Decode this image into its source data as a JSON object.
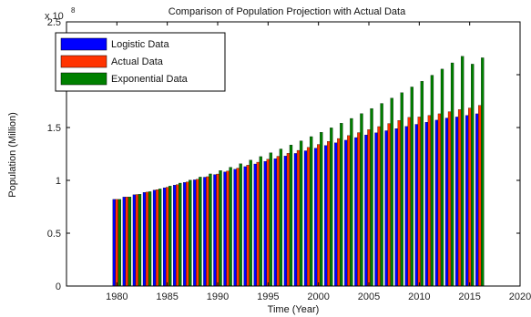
{
  "chart_data": {
    "type": "bar",
    "title": "Comparison of Population Projection with Actual Data",
    "xlabel": "Time (Year)",
    "ylabel": "Population (Million)",
    "y_exponent_label": "x 10",
    "y_exponent_power": "8",
    "xlim": [
      1975,
      2020
    ],
    "ylim": [
      0,
      250000000
    ],
    "x_ticks": [
      1980,
      1985,
      1990,
      1995,
      2000,
      2005,
      2010,
      2015,
      2020
    ],
    "x_tick_labels": [
      "1980",
      "1985",
      "1990",
      "1995",
      "2000",
      "2005",
      "2010",
      "2015",
      "2020"
    ],
    "y_ticks": [
      0,
      50000000,
      100000000,
      150000000,
      200000000,
      250000000
    ],
    "y_tick_labels": [
      "0",
      "0.5",
      "1",
      "1.5",
      "2",
      "2.5"
    ],
    "grid": false,
    "legend_position": "top-left",
    "x": [
      1980,
      1981,
      1982,
      1983,
      1984,
      1985,
      1986,
      1987,
      1988,
      1989,
      1990,
      1991,
      1992,
      1993,
      1994,
      1995,
      1996,
      1997,
      1998,
      1999,
      2000,
      2001,
      2002,
      2003,
      2004,
      2005,
      2006,
      2007,
      2008,
      2009,
      2010,
      2011,
      2012,
      2013,
      2014,
      2015,
      2016
    ],
    "series": [
      {
        "name": "Logistic Data",
        "color": "#0000ff",
        "values": [
          82000000,
          84200000,
          86400000,
          88600000,
          90800000,
          93000000,
          95500000,
          98000000,
          100500000,
          103000000,
          105500000,
          108000000,
          110500000,
          113000000,
          115500000,
          118000000,
          120500000,
          123000000,
          125500000,
          128000000,
          130500000,
          133000000,
          135500000,
          138000000,
          140500000,
          143000000,
          145000000,
          147000000,
          149000000,
          151000000,
          153000000,
          155000000,
          157000000,
          159000000,
          160000000,
          161500000,
          163000000
        ]
      },
      {
        "name": "Actual Data",
        "color": "#ff3300",
        "values": [
          82000000,
          84300000,
          86600000,
          88900000,
          91200000,
          93500000,
          96000000,
          98500000,
          101000000,
          103500000,
          106000000,
          108800000,
          111600000,
          114400000,
          117200000,
          120000000,
          122800000,
          125600000,
          128400000,
          131200000,
          134000000,
          136800000,
          139600000,
          142400000,
          145200000,
          148000000,
          150900000,
          153800000,
          156700000,
          159600000,
          160000000,
          161500000,
          163000000,
          165000000,
          167000000,
          168500000,
          171000000
        ]
      },
      {
        "name": "Exponential Data",
        "color": "#008000",
        "values": [
          82000000,
          84300000,
          86800000,
          89300000,
          91900000,
          94600000,
          97400000,
          100200000,
          103100000,
          106100000,
          109200000,
          112400000,
          115700000,
          119100000,
          122500000,
          126100000,
          129700000,
          133500000,
          137400000,
          141400000,
          145500000,
          149700000,
          154100000,
          158600000,
          163200000,
          168000000,
          172800000,
          177900000,
          183000000,
          188400000,
          193800000,
          199500000,
          205300000,
          211200000,
          217400000,
          210000000,
          216000000
        ]
      }
    ]
  }
}
